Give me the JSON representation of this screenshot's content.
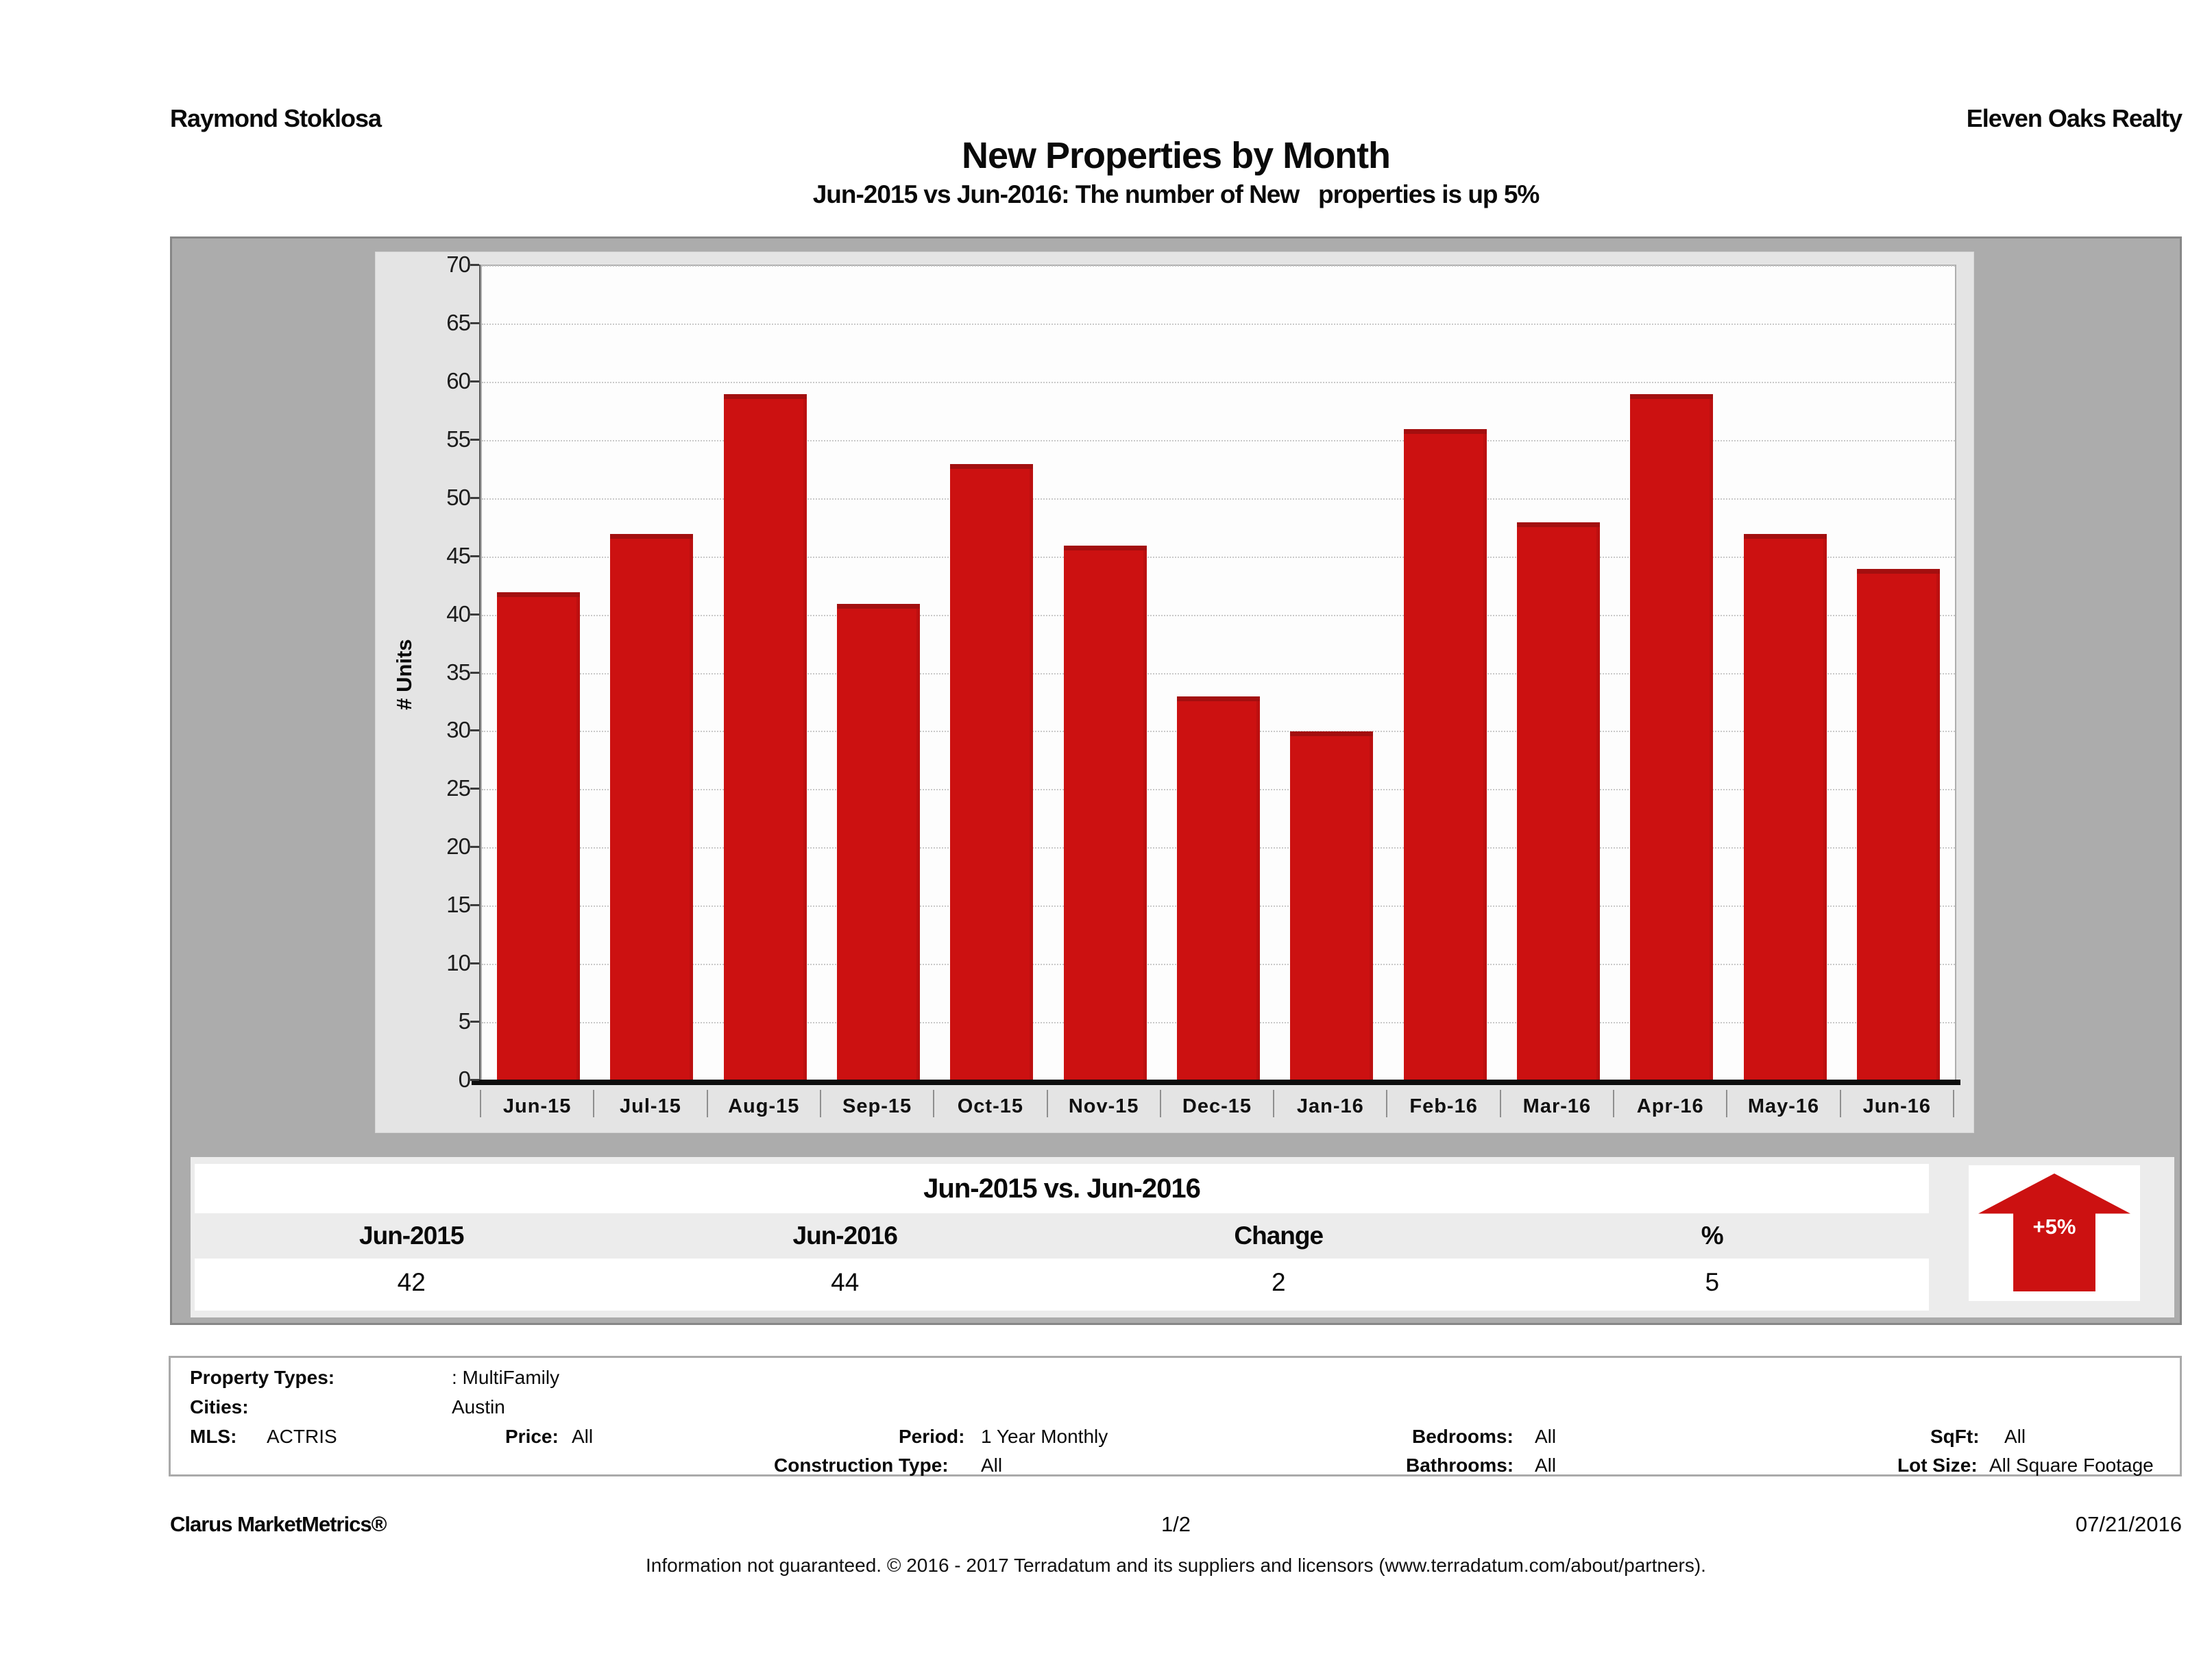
{
  "header": {
    "agent": "Raymond Stoklosa",
    "company": "Eleven Oaks Realty"
  },
  "chart_data": {
    "type": "bar",
    "title": "New Properties by Month",
    "subtitle": "Jun-2015 vs Jun-2016: The number of New   properties is up 5%",
    "ylabel": "# Units",
    "xlabel": "",
    "categories": [
      "Jun-15",
      "Jul-15",
      "Aug-15",
      "Sep-15",
      "Oct-15",
      "Nov-15",
      "Dec-15",
      "Jan-16",
      "Feb-16",
      "Mar-16",
      "Apr-16",
      "May-16",
      "Jun-16"
    ],
    "values": [
      42,
      47,
      59,
      41,
      53,
      46,
      33,
      30,
      56,
      48,
      59,
      47,
      44
    ],
    "ylim": [
      0,
      70
    ],
    "ytick_step": 5,
    "grid": "horizontal-dotted",
    "legend": "none",
    "bar_color": "#cc1111"
  },
  "summary_table": {
    "title": "Jun-2015 vs. Jun-2016",
    "columns": [
      "Jun-2015",
      "Jun-2016",
      "Change",
      "%"
    ],
    "values": [
      "42",
      "44",
      "2",
      "5"
    ]
  },
  "badge": {
    "label": "+5%",
    "direction": "up",
    "color": "#cc1111"
  },
  "filters": {
    "property_types_label": "Property Types:",
    "property_types_value": ": MultiFamily",
    "cities_label": "Cities:",
    "cities_value": "Austin",
    "mls_label": "MLS:",
    "mls_value": "ACTRIS",
    "price_label": "Price:",
    "price_value": "All",
    "period_label": "Period:",
    "period_value": "1 Year Monthly",
    "bedrooms_label": "Bedrooms:",
    "bedrooms_value": "All",
    "sqft_label": "SqFt:",
    "sqft_value": "All",
    "construction_label": "Construction Type:",
    "construction_value": "All",
    "bathrooms_label": "Bathrooms:",
    "bathrooms_value": "All",
    "lot_label": "Lot Size:",
    "lot_value": "All Square Footage"
  },
  "footer": {
    "brand": "Clarus MarketMetrics®",
    "page": "1/2",
    "date": "07/21/2016",
    "disclaimer": "Information not guaranteed. © 2016 - 2017 Terradatum and its suppliers and licensors (www.terradatum.com/about/partners)."
  }
}
